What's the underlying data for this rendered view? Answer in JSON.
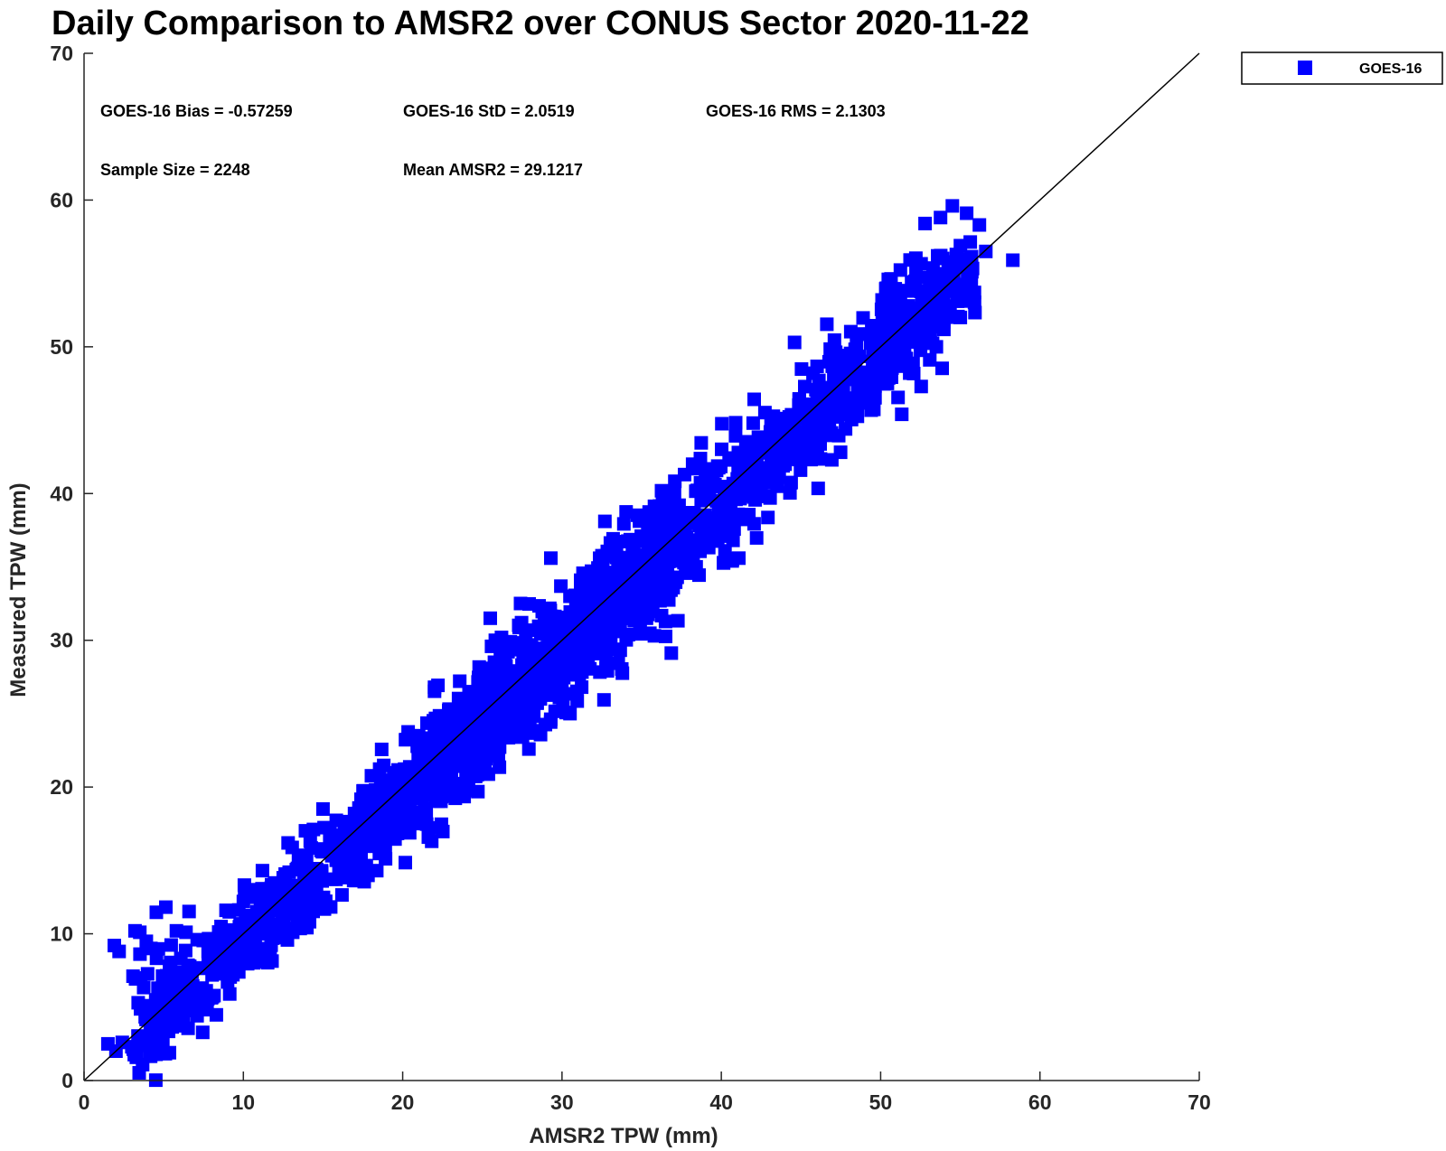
{
  "chart_data": {
    "type": "scatter",
    "title": "Daily Comparison to AMSR2 over CONUS Sector 2020-11-22",
    "xlabel": "AMSR2 TPW (mm)",
    "ylabel": "Measured TPW (mm)",
    "xlim": [
      0,
      70
    ],
    "ylim": [
      0,
      70
    ],
    "xticks": [
      0,
      10,
      20,
      30,
      40,
      50,
      60,
      70
    ],
    "yticks": [
      0,
      10,
      20,
      30,
      40,
      50,
      60,
      70
    ],
    "grid": false,
    "legend": {
      "position": "outside-top-right",
      "entries": [
        "GOES-16"
      ]
    },
    "reference_line": {
      "type": "one-to-one",
      "from": [
        0,
        0
      ],
      "to": [
        70,
        70
      ]
    },
    "annotations": {
      "bias": "GOES-16 Bias = -0.57259",
      "std": "GOES-16 StD = 2.0519",
      "rms": "GOES-16 RMS = 2.1303",
      "sample_size": "Sample Size = 2248",
      "mean": "Mean AMSR2 = 29.1217"
    },
    "series": [
      {
        "name": "GOES-16",
        "color": "#0000ff",
        "marker": "square",
        "sample_size": 2248,
        "mean_x": 29.1217,
        "bias": -0.57259,
        "std": 2.0519,
        "points_x": [
          1.5,
          2.0,
          2.4,
          3.0,
          1.9,
          3.2,
          3.5,
          4.2,
          2.2,
          3.4,
          4.1,
          5.8,
          6.4,
          7.1,
          4.5,
          5.0,
          5.6,
          6.2,
          7.8,
          8.6,
          9.3,
          10.0,
          11.2,
          12.0,
          13.1,
          14.2,
          10.8,
          11.4,
          15.0,
          16.2,
          17.1,
          18.3,
          19.4,
          21.1,
          22.0,
          23.0,
          24.4,
          25.8,
          27.0,
          28.5,
          29.4,
          30.8,
          32.0,
          33.5,
          34.6,
          36.0,
          37.2,
          38.5,
          39.7,
          41.0,
          42.5,
          44.0,
          45.5,
          47.0,
          48.2,
          49.5,
          51.0,
          52.5,
          53.5,
          55.0,
          54.5,
          55.4,
          56.2,
          56.6,
          58.3,
          22.0,
          21.0,
          25.5,
          26.2,
          29.3,
          30.1,
          44.6,
          45.9,
          38.2,
          39.6,
          37.5,
          36.9,
          41.1,
          16.0,
          18.1,
          20.3,
          24.0,
          26.5,
          27.8,
          31.2,
          34.9,
          36.3,
          42.0,
          43.5,
          47.8,
          50.0,
          53.0,
          24.6,
          27.3,
          30.5,
          33.0,
          35.3,
          35.8,
          40.6,
          42.9,
          48.4
        ],
        "points_y": [
          2.5,
          2.0,
          2.6,
          2.3,
          9.2,
          10.2,
          10.1,
          9.0,
          8.8,
          5.3,
          4.6,
          10.2,
          10.1,
          9.6,
          5.5,
          6.6,
          7.3,
          6.1,
          8.4,
          10.5,
          9.5,
          12.2,
          14.3,
          11.8,
          10.1,
          16.3,
          13.0,
          11.0,
          18.5,
          16.0,
          17.6,
          19.2,
          17.0,
          23.0,
          21.0,
          20.5,
          25.2,
          24.0,
          26.0,
          28.5,
          27.2,
          30.0,
          31.5,
          33.8,
          32.5,
          36.0,
          37.5,
          38.0,
          39.5,
          41.0,
          43.0,
          42.0,
          45.0,
          47.0,
          46.5,
          49.0,
          49.5,
          50.8,
          50.0,
          52.0,
          59.6,
          59.1,
          58.3,
          56.5,
          55.9,
          26.8,
          23.5,
          31.5,
          30.2,
          35.6,
          27.5,
          50.3,
          44.2,
          42.0,
          40.6,
          35.5,
          33.8,
          35.6,
          14.6,
          16.5,
          18.8,
          20.0,
          25.2,
          23.8,
          28.0,
          31.0,
          38.4,
          44.8,
          40.5,
          44.4,
          49.2,
          52.5,
          22.0,
          23.4,
          25.0,
          29.4,
          31.5,
          30.3,
          37.1,
          39.8,
          47.8
        ]
      }
    ]
  }
}
